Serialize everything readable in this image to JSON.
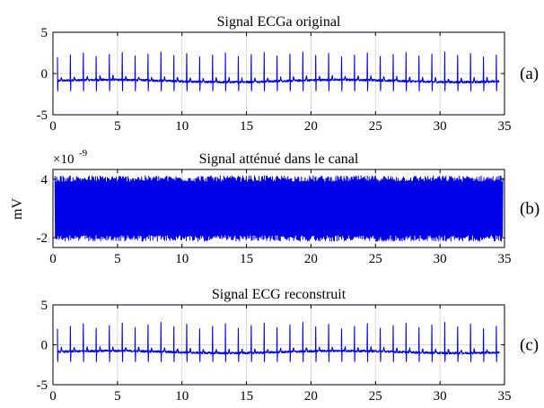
{
  "colors": {
    "signal": "#0000e6",
    "axis": "#000000",
    "grid": "#d9d9d9",
    "background": "#ffffff"
  },
  "ylabel_shared": "mV",
  "chart_data": [
    {
      "type": "line",
      "title": "Signal ECGa original",
      "panel_label": "(a)",
      "xlim": [
        0,
        35
      ],
      "ylim": [
        -5,
        5
      ],
      "xticks": [
        "0",
        "5",
        "10",
        "15",
        "20",
        "25",
        "30",
        "35"
      ],
      "yticks": [
        "5",
        "0",
        "-5"
      ],
      "ytick_values": [
        5,
        0,
        -5
      ],
      "grid": true,
      "series": [
        {
          "style": "ecg",
          "beats_per_second": 1.0,
          "start": 0.35,
          "end": 34.6,
          "baseline": -0.9,
          "peak_min": 2.0,
          "peak_max": 2.6,
          "trough": -2.1
        }
      ]
    },
    {
      "type": "line",
      "title": "Signal atténué dans le canal",
      "panel_label": "(b)",
      "exponent_label": "×10",
      "exponent_power": "-9",
      "xlim": [
        0,
        35
      ],
      "ylim": [
        -3,
        5
      ],
      "xticks": [
        "0",
        "5",
        "10",
        "15",
        "20",
        "25",
        "30",
        "35"
      ],
      "yticks": [
        "4",
        "-2"
      ],
      "ytick_values": [
        4,
        -2
      ],
      "grid": true,
      "series": [
        {
          "style": "noise_band",
          "center": 1.0,
          "amplitude": 3.2,
          "start": 0.15,
          "end": 34.9
        }
      ]
    },
    {
      "type": "line",
      "title": "Signal ECG reconstruit",
      "panel_label": "(c)",
      "xlim": [
        0,
        35
      ],
      "ylim": [
        -5,
        5
      ],
      "xticks": [
        "0",
        "5",
        "10",
        "15",
        "20",
        "25",
        "30",
        "35"
      ],
      "yticks": [
        "5",
        "0",
        "-5"
      ],
      "ytick_values": [
        5,
        0,
        -5
      ],
      "grid": true,
      "series": [
        {
          "style": "ecg",
          "beats_per_second": 1.0,
          "start": 0.35,
          "end": 34.6,
          "baseline": -0.9,
          "peak_min": 2.0,
          "peak_max": 2.8,
          "trough": -2.1
        }
      ]
    }
  ]
}
